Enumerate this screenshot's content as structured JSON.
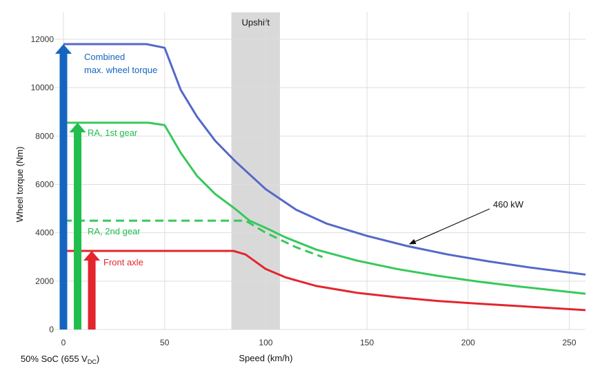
{
  "chart_data": {
    "type": "line",
    "xlabel": "Speed (km/h)",
    "ylabel": "Wheel torque (Nm)",
    "xlim": [
      0,
      258
    ],
    "ylim": [
      0,
      12000
    ],
    "x_ticks": [
      0,
      50,
      100,
      150,
      200,
      250
    ],
    "y_ticks": [
      0,
      2000,
      4000,
      6000,
      8000,
      10000,
      12000
    ],
    "grid": true,
    "shaded_region": {
      "label": "Upshift",
      "x_start": 83,
      "x_end": 107,
      "color": "#d9d9d9"
    },
    "series": [
      {
        "name": "Combined max. wheel torque",
        "color": "#5468c8",
        "style": "solid",
        "points": [
          [
            0,
            11800
          ],
          [
            41,
            11800
          ],
          [
            50,
            11650
          ],
          [
            58,
            9900
          ],
          [
            66,
            8800
          ],
          [
            75,
            7800
          ],
          [
            85,
            6950
          ],
          [
            100,
            5800
          ],
          [
            115,
            4950
          ],
          [
            130,
            4380
          ],
          [
            150,
            3870
          ],
          [
            170,
            3450
          ],
          [
            190,
            3100
          ],
          [
            210,
            2820
          ],
          [
            230,
            2570
          ],
          [
            258,
            2270
          ]
        ]
      },
      {
        "name": "RA, 1st gear",
        "color": "#37c85a",
        "style": "solid",
        "points": [
          [
            0,
            8550
          ],
          [
            42,
            8550
          ],
          [
            50,
            8450
          ],
          [
            58,
            7300
          ],
          [
            66,
            6350
          ],
          [
            75,
            5600
          ],
          [
            85,
            4980
          ],
          [
            92,
            4500
          ],
          [
            100,
            4200
          ],
          [
            110,
            3800
          ],
          [
            125,
            3300
          ],
          [
            145,
            2850
          ],
          [
            165,
            2500
          ],
          [
            185,
            2220
          ],
          [
            205,
            1980
          ],
          [
            225,
            1780
          ],
          [
            258,
            1480
          ]
        ]
      },
      {
        "name": "RA, 2nd gear",
        "color": "#37c85a",
        "style": "dashed",
        "points": [
          [
            0,
            4500
          ],
          [
            90,
            4500
          ],
          [
            100,
            4000
          ],
          [
            115,
            3400
          ],
          [
            128,
            3000
          ]
        ]
      },
      {
        "name": "Front axle",
        "color": "#e3252e",
        "style": "solid",
        "points": [
          [
            0,
            3250
          ],
          [
            84,
            3250
          ],
          [
            90,
            3100
          ],
          [
            100,
            2500
          ],
          [
            110,
            2150
          ],
          [
            125,
            1800
          ],
          [
            145,
            1520
          ],
          [
            165,
            1330
          ],
          [
            185,
            1180
          ],
          [
            205,
            1070
          ],
          [
            225,
            970
          ],
          [
            258,
            800
          ]
        ]
      }
    ],
    "arrows": [
      {
        "series": "Combined max. wheel torque",
        "color": "#1565c0",
        "value": 11800,
        "x": 0
      },
      {
        "series": "RA, 1st gear",
        "color": "#1fbe4d",
        "value": 8550,
        "x": 7
      },
      {
        "series": "Front axle",
        "color": "#e3252e",
        "value": 3250,
        "x": 14
      }
    ],
    "annotations": {
      "combined_line1": "Combined",
      "combined_line2": "max. wheel torque",
      "ra1": "RA, 1st gear",
      "ra2": "RA, 2nd gear",
      "front": "Front axle",
      "power": "460 kW",
      "power_point": [
        170,
        3450
      ]
    },
    "footer_left_main": "50% SoC (655 V",
    "footer_left_sub": "DC",
    "footer_left_end": ")"
  }
}
